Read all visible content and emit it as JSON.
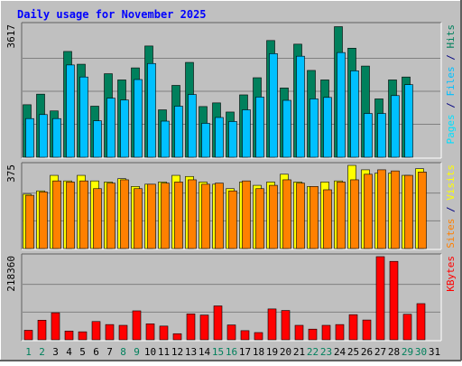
{
  "colors": {
    "background": "#c0c0c0",
    "plot_background": "#c0c0c0",
    "title": "#0000ff",
    "hits": "#00805c",
    "files": "#00c0ff",
    "pages": "#00e0ff",
    "visits": "#ffff00",
    "sites": "#ff8000",
    "kbytes": "#ff0000",
    "weekend_label": "#00805c",
    "weekday_label": "#000080",
    "gridline": "#808080"
  },
  "chart_data": {
    "type": "bar",
    "title": "Daily usage for November 2025",
    "categories": [
      "1",
      "2",
      "3",
      "4",
      "5",
      "6",
      "7",
      "8",
      "9",
      "10",
      "11",
      "12",
      "13",
      "14",
      "15",
      "16",
      "17",
      "18",
      "19",
      "20",
      "21",
      "22",
      "23",
      "24",
      "25",
      "26",
      "27",
      "28",
      "29",
      "30",
      "31"
    ],
    "weekend_days": [
      "1",
      "2",
      "8",
      "9",
      "15",
      "16",
      "22",
      "23",
      "29",
      "30"
    ],
    "panels": [
      {
        "id": "hits_files_pages",
        "ymax_label": "3617",
        "ylim": [
          0,
          3617
        ],
        "axis_label_parts": [
          {
            "text": "Pages",
            "color_key": "pages"
          },
          {
            "text": " / ",
            "color_key": "weekday_label"
          },
          {
            "text": "Files",
            "color_key": "files"
          },
          {
            "text": " / ",
            "color_key": "weekday_label"
          },
          {
            "text": "Hits",
            "color_key": "hits"
          }
        ],
        "series": [
          {
            "name": "Hits",
            "color_key": "hits",
            "values": [
              1440,
              1730,
              1270,
              2900,
              2550,
              1400,
              2290,
              2120,
              2450,
              3050,
              1300,
              1970,
              2600,
              1390,
              1490,
              1240,
              1710,
              2180,
              3200,
              1900,
              3100,
              2380,
              2120,
              3580,
              2990,
              2500,
              1600,
              2120,
              2200,
              0,
              0
            ]
          },
          {
            "name": "Files",
            "color_key": "files",
            "values": [
              1060,
              1170,
              1060,
              2530,
              2200,
              1000,
              1620,
              1570,
              2130,
              2570,
              990,
              1400,
              1720,
              930,
              1090,
              980,
              1300,
              1650,
              2840,
              1560,
              2770,
              1600,
              1640,
              2870,
              2370,
              1200,
              1200,
              1690,
              1990,
              0,
              0
            ]
          },
          {
            "name": "Pages",
            "color_key": "pages",
            "values": [
              0,
              0,
              0,
              0,
              0,
              0,
              0,
              0,
              0,
              0,
              0,
              0,
              0,
              0,
              0,
              0,
              0,
              0,
              0,
              0,
              0,
              0,
              0,
              0,
              0,
              0,
              0,
              0,
              0,
              0,
              0
            ]
          }
        ]
      },
      {
        "id": "visits_sites",
        "ymax_label": "375",
        "ylim": [
          0,
          375
        ],
        "axis_label_parts": [
          {
            "text": "Sites",
            "color_key": "sites"
          },
          {
            "text": " / ",
            "color_key": "weekday_label"
          },
          {
            "text": "Visits",
            "color_key": "visits"
          }
        ],
        "series": [
          {
            "name": "Visits",
            "color_key": "visits",
            "values": [
              245,
              260,
              330,
              305,
              330,
              305,
              300,
              315,
              280,
              290,
              300,
              330,
              325,
              300,
              290,
              270,
              300,
              285,
              300,
              335,
              300,
              280,
              300,
              305,
              375,
              355,
              340,
              340,
              330,
              360,
              0
            ]
          },
          {
            "name": "Sites",
            "color_key": "sites",
            "values": [
              240,
              255,
              305,
              300,
              305,
              270,
              295,
              310,
              270,
              290,
              295,
              300,
              310,
              290,
              295,
              260,
              305,
              270,
              285,
              310,
              295,
              280,
              265,
              300,
              310,
              335,
              355,
              350,
              330,
              345,
              0
            ]
          }
        ]
      },
      {
        "id": "kbytes",
        "ymax_label": "218360",
        "ylim": [
          0,
          218360
        ],
        "axis_label_parts": [
          {
            "text": "KBytes",
            "color_key": "kbytes"
          }
        ],
        "series": [
          {
            "name": "KBytes",
            "color_key": "kbytes",
            "values": [
              25000,
              51500,
              71000,
              23000,
              21000,
              48000,
              40000,
              38000,
              76000,
              42000,
              36000,
              16000,
              68000,
              65000,
              89000,
              39000,
              24000,
              19000,
              81000,
              77000,
              38000,
              28000,
              38000,
              40000,
              66000,
              52000,
              218360,
              206000,
              67000,
              95000,
              0
            ]
          }
        ]
      }
    ]
  }
}
